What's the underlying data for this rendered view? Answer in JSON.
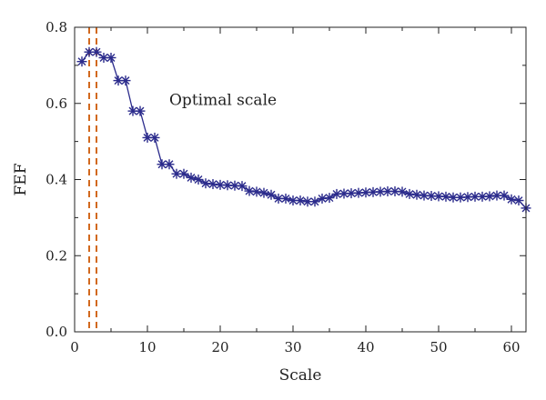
{
  "chart_data": {
    "type": "line",
    "title": "",
    "xlabel": "Scale",
    "ylabel": "FEF",
    "xlim": [
      0,
      62
    ],
    "ylim": [
      0.0,
      0.8
    ],
    "xticks": [
      0,
      10,
      20,
      30,
      40,
      50,
      60
    ],
    "xtick_labels": [
      "0",
      "10",
      "20",
      "30",
      "40",
      "50",
      "60"
    ],
    "yticks": [
      0.0,
      0.2,
      0.4,
      0.6,
      0.8
    ],
    "ytick_labels": [
      "0.0",
      "0.2",
      "0.4",
      "0.6",
      "0.8"
    ],
    "grid": false,
    "legend": "none",
    "series": [
      {
        "color": "#2b2b8c",
        "marker": "asterisk",
        "x": [
          1,
          2,
          3,
          4,
          5,
          6,
          7,
          8,
          9,
          10,
          11,
          12,
          13,
          14,
          15,
          16,
          17,
          18,
          19,
          20,
          21,
          22,
          23,
          24,
          25,
          26,
          27,
          28,
          29,
          30,
          31,
          32,
          33,
          34,
          35,
          36,
          37,
          38,
          39,
          40,
          41,
          42,
          43,
          44,
          45,
          46,
          47,
          48,
          49,
          50,
          51,
          52,
          53,
          54,
          55,
          56,
          57,
          58,
          59,
          60,
          61,
          62
        ],
        "y": [
          0.71,
          0.735,
          0.735,
          0.72,
          0.72,
          0.66,
          0.66,
          0.58,
          0.58,
          0.51,
          0.51,
          0.44,
          0.44,
          0.415,
          0.415,
          0.405,
          0.4,
          0.39,
          0.388,
          0.386,
          0.385,
          0.384,
          0.383,
          0.37,
          0.368,
          0.365,
          0.36,
          0.35,
          0.35,
          0.345,
          0.345,
          0.342,
          0.342,
          0.35,
          0.352,
          0.362,
          0.363,
          0.364,
          0.365,
          0.366,
          0.367,
          0.368,
          0.369,
          0.369,
          0.368,
          0.362,
          0.36,
          0.358,
          0.357,
          0.356,
          0.355,
          0.353,
          0.353,
          0.354,
          0.355,
          0.355,
          0.356,
          0.358,
          0.358,
          0.348,
          0.345,
          0.325
        ]
      }
    ],
    "vlines": [
      {
        "x": 2,
        "color": "#d2691e",
        "style": "dashed"
      },
      {
        "x": 3,
        "color": "#d2691e",
        "style": "dashed"
      }
    ],
    "annotations": [
      {
        "text": "Optimal scale",
        "x": 13,
        "y": 0.61
      }
    ]
  }
}
